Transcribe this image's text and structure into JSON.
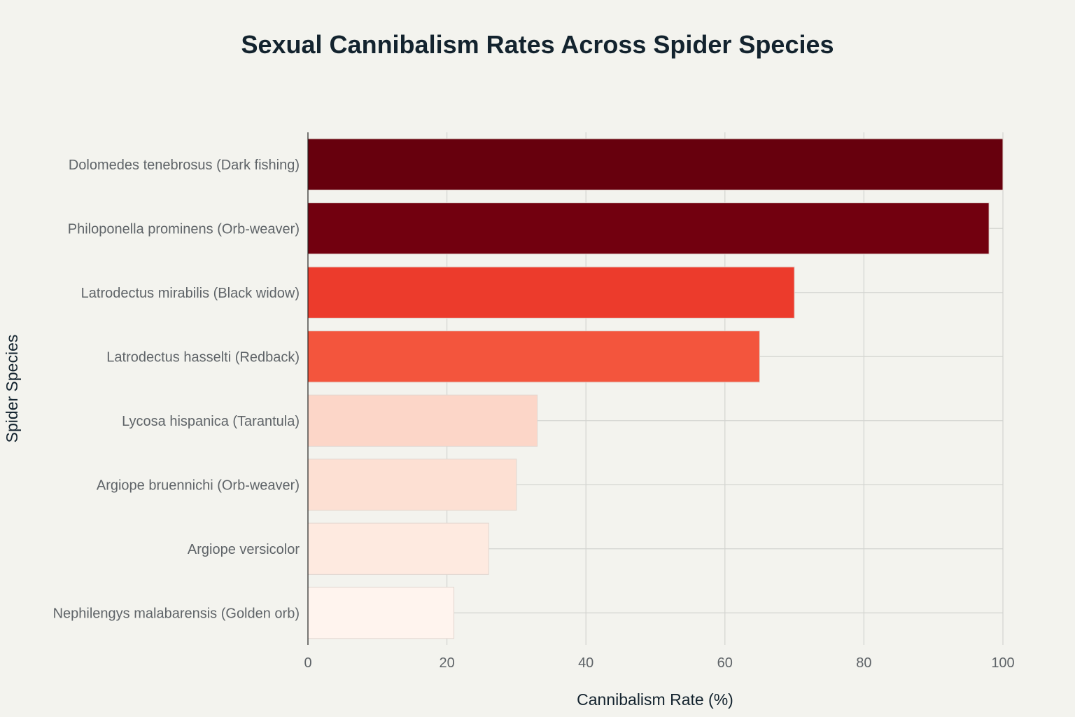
{
  "chart_data": {
    "type": "bar",
    "orientation": "horizontal",
    "title": "Sexual Cannibalism Rates Across Spider Species",
    "xlabel": "Cannibalism Rate (%)",
    "ylabel": "Spider Species",
    "xlim": [
      0,
      100
    ],
    "xticks": [
      0,
      20,
      40,
      60,
      80,
      100
    ],
    "grid": true,
    "categories": [
      "Dolomedes tenebrosus (Dark fishing)",
      "Philoponella prominens (Orb-weaver)",
      "Latrodectus mirabilis (Black widow)",
      "Latrodectus hasselti (Redback)",
      "Lycosa hispanica (Tarantula)",
      "Argiope bruennichi (Orb-weaver)",
      "Argiope versicolor",
      "Nephilengys malabarensis (Golden orb)"
    ],
    "values": [
      100,
      98,
      70,
      65,
      33,
      30,
      26,
      21
    ],
    "colors": [
      "#67000d",
      "#72000f",
      "#ec3b2c",
      "#f3553d",
      "#fcd6c8",
      "#fde0d3",
      "#feeae0",
      "#fff4ee"
    ]
  }
}
